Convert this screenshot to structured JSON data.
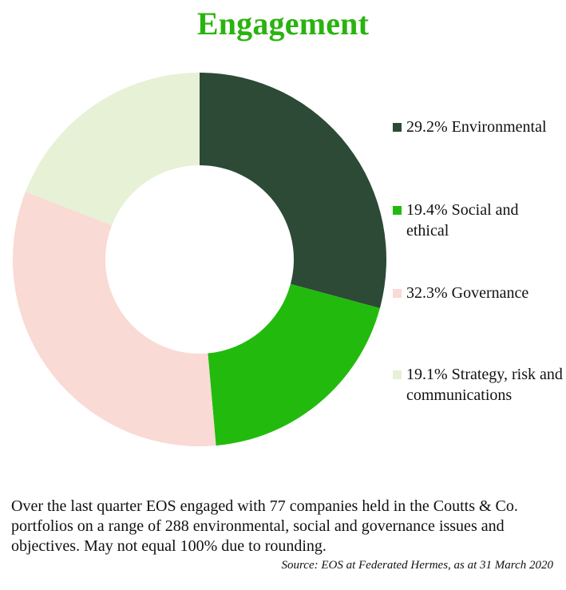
{
  "title": "Engagement",
  "colors": {
    "title": "#2ab30f",
    "environmental": "#2c4a36",
    "social": "#22bb0d",
    "governance": "#f9dad4",
    "strategy": "#e6f1d6"
  },
  "chart_data": {
    "type": "pie",
    "variant": "donut",
    "title": "Engagement",
    "slices": [
      {
        "label": "Environmental",
        "value": 29.2,
        "color": "#2c4a36"
      },
      {
        "label": "Social and ethical",
        "value": 19.4,
        "color": "#22bb0d"
      },
      {
        "label": "Governance",
        "value": 32.3,
        "color": "#f9dad4"
      },
      {
        "label": "Strategy, risk and communications",
        "value": 19.1,
        "color": "#e6f1d6"
      }
    ],
    "legend_placement": "right"
  },
  "legend": {
    "items": [
      {
        "text": "29.2% Environmental"
      },
      {
        "text": "19.4% Social and ethical"
      },
      {
        "text": "32.3% Governance"
      },
      {
        "text": "19.1% Strategy, risk and communications"
      }
    ]
  },
  "caption": "Over the last quarter EOS engaged with 77 companies held in the Coutts & Co. portfolios on a range of 288 environmental, social and governance issues and objectives. May not equal 100% due to rounding.",
  "source": "Source: EOS at Federated Hermes, as at 31 March 2020"
}
